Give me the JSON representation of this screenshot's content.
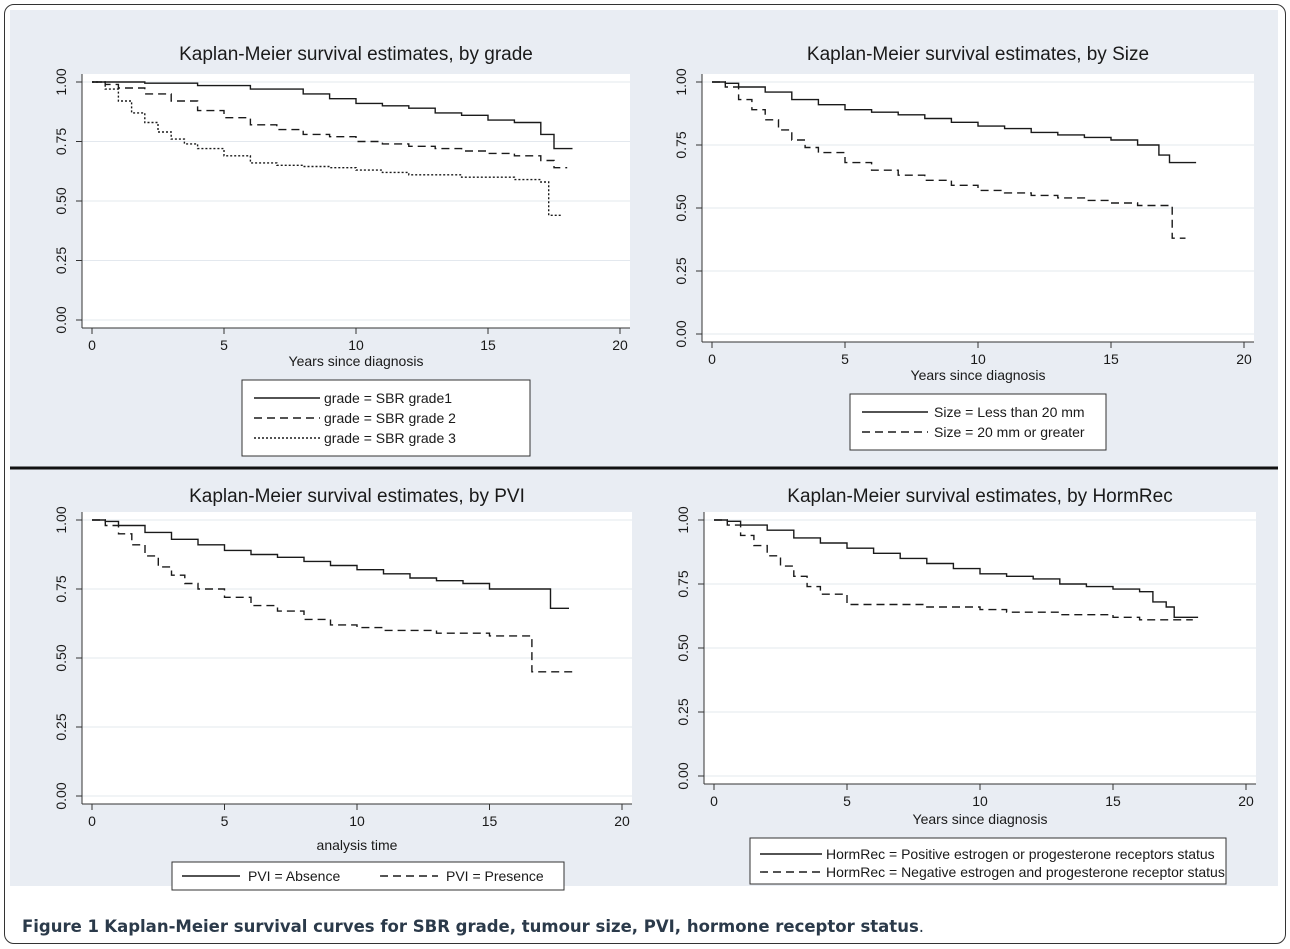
{
  "caption": {
    "label": "Figure 1",
    "text": "Kaplan-Meier survival curves for SBR grade, tumour size, PVI, hormone receptor status",
    "end": "."
  },
  "colors": {
    "panel_bg": "#e9edf3",
    "plot_bg": "#ffffff",
    "grid": "#e3e8ee",
    "line": "#1a1a1a"
  },
  "chart_data": [
    {
      "type": "line",
      "title": "Kaplan-Meier survival estimates, by grade",
      "xlabel": "Years since diagnosis",
      "ylabel": "",
      "xlim": [
        0,
        20
      ],
      "ylim": [
        0,
        1
      ],
      "xticks": [
        "0",
        "5",
        "10",
        "15",
        "20"
      ],
      "yticks": [
        "0.00",
        "0.25",
        "0.50",
        "0.75",
        "1.00"
      ],
      "grid": true,
      "legend_position": "bottom",
      "series": [
        {
          "name": "grade = SBR grade1",
          "style": "solid",
          "x": [
            0,
            2,
            4,
            6,
            8,
            9,
            10,
            11,
            12,
            13,
            14,
            15,
            16,
            16.5,
            17,
            17.5,
            18.2
          ],
          "y": [
            1.0,
            0.995,
            0.985,
            0.97,
            0.95,
            0.93,
            0.91,
            0.9,
            0.89,
            0.87,
            0.86,
            0.84,
            0.83,
            0.83,
            0.78,
            0.72,
            0.72
          ]
        },
        {
          "name": "grade = SBR grade 2",
          "style": "dashed",
          "x": [
            0,
            0.5,
            1,
            2,
            3,
            4,
            5,
            6,
            7,
            8,
            9,
            10,
            11,
            12,
            13,
            14,
            15,
            16,
            17,
            17.5,
            18
          ],
          "y": [
            1.0,
            0.99,
            0.975,
            0.95,
            0.92,
            0.88,
            0.85,
            0.82,
            0.8,
            0.78,
            0.77,
            0.75,
            0.74,
            0.73,
            0.72,
            0.71,
            0.7,
            0.69,
            0.67,
            0.64,
            0.64
          ]
        },
        {
          "name": "grade = SBR grade 3",
          "style": "dotted",
          "x": [
            0,
            0.5,
            1,
            1.5,
            2,
            2.5,
            3,
            3.5,
            4,
            5,
            6,
            7,
            8,
            9,
            10,
            11,
            12,
            13,
            14,
            15,
            16,
            17,
            17.3,
            17.8
          ],
          "y": [
            1.0,
            0.97,
            0.92,
            0.87,
            0.83,
            0.79,
            0.76,
            0.74,
            0.72,
            0.69,
            0.66,
            0.65,
            0.645,
            0.64,
            0.63,
            0.62,
            0.61,
            0.61,
            0.6,
            0.6,
            0.59,
            0.58,
            0.44,
            0.44
          ]
        }
      ]
    },
    {
      "type": "line",
      "title": "Kaplan-Meier survival estimates, by Size",
      "xlabel": "Years since diagnosis",
      "ylabel": "",
      "xlim": [
        0,
        20
      ],
      "ylim": [
        0,
        1
      ],
      "xticks": [
        "0",
        "5",
        "10",
        "15",
        "20"
      ],
      "yticks": [
        "0.00",
        "0.25",
        "0.50",
        "0.75",
        "1.00"
      ],
      "grid": true,
      "legend_position": "bottom",
      "series": [
        {
          "name": "Size = Less than 20 mm",
          "style": "solid",
          "x": [
            0,
            0.5,
            1,
            2,
            3,
            4,
            5,
            6,
            7,
            8,
            9,
            10,
            11,
            12,
            13,
            14,
            15,
            16,
            16.8,
            17.2,
            18.2
          ],
          "y": [
            1.0,
            0.995,
            0.98,
            0.96,
            0.93,
            0.91,
            0.89,
            0.88,
            0.87,
            0.855,
            0.84,
            0.825,
            0.815,
            0.8,
            0.79,
            0.78,
            0.77,
            0.75,
            0.71,
            0.68,
            0.68
          ]
        },
        {
          "name": "Size = 20 mm or greater",
          "style": "dashed",
          "x": [
            0,
            0.5,
            1,
            1.5,
            2,
            2.5,
            3,
            3.5,
            4,
            5,
            6,
            7,
            8,
            9,
            10,
            11,
            12,
            13,
            14,
            15,
            16,
            17,
            17.3,
            17.8
          ],
          "y": [
            1.0,
            0.98,
            0.93,
            0.89,
            0.85,
            0.81,
            0.77,
            0.74,
            0.72,
            0.68,
            0.65,
            0.63,
            0.61,
            0.59,
            0.57,
            0.56,
            0.55,
            0.54,
            0.53,
            0.52,
            0.51,
            0.51,
            0.38,
            0.38
          ]
        }
      ]
    },
    {
      "type": "line",
      "title": "Kaplan-Meier survival estimates, by PVI",
      "xlabel": "analysis time",
      "ylabel": "",
      "xlim": [
        0,
        20
      ],
      "ylim": [
        0,
        1
      ],
      "xticks": [
        "0",
        "5",
        "10",
        "15",
        "20"
      ],
      "yticks": [
        "0.00",
        "0.25",
        "0.50",
        "0.75",
        "1.00"
      ],
      "grid": true,
      "legend_position": "bottom",
      "series": [
        {
          "name": "PVI = Absence",
          "style": "solid",
          "x": [
            0,
            0.5,
            1,
            2,
            3,
            4,
            5,
            6,
            7,
            8,
            9,
            10,
            11,
            12,
            13,
            14,
            15,
            16,
            17,
            17.3,
            18
          ],
          "y": [
            1.0,
            0.995,
            0.98,
            0.955,
            0.93,
            0.91,
            0.89,
            0.875,
            0.865,
            0.85,
            0.835,
            0.82,
            0.805,
            0.79,
            0.78,
            0.77,
            0.75,
            0.75,
            0.75,
            0.68,
            0.68
          ]
        },
        {
          "name": "PVI = Presence",
          "style": "dashed",
          "x": [
            0,
            0.5,
            1,
            1.5,
            2,
            2.5,
            3,
            3.5,
            4,
            5,
            6,
            7,
            8,
            9,
            10,
            11,
            12,
            13,
            14,
            15,
            16,
            16.6,
            17,
            18.2
          ],
          "y": [
            1.0,
            0.98,
            0.95,
            0.91,
            0.87,
            0.83,
            0.8,
            0.77,
            0.75,
            0.72,
            0.69,
            0.67,
            0.64,
            0.62,
            0.61,
            0.6,
            0.6,
            0.59,
            0.59,
            0.58,
            0.58,
            0.45,
            0.45,
            0.45
          ]
        }
      ]
    },
    {
      "type": "line",
      "title": "Kaplan-Meier survival estimates, by HormRec",
      "xlabel": "Years since diagnosis",
      "ylabel": "",
      "xlim": [
        0,
        20
      ],
      "ylim": [
        0,
        1
      ],
      "xticks": [
        "0",
        "5",
        "10",
        "15",
        "20"
      ],
      "yticks": [
        "0.00",
        "0.25",
        "0.50",
        "0.75",
        "1.00"
      ],
      "grid": true,
      "legend_position": "bottom",
      "series": [
        {
          "name": "HormRec = Positive estrogen or progesterone receptors status",
          "style": "solid",
          "x": [
            0,
            0.5,
            1,
            2,
            3,
            4,
            5,
            6,
            7,
            8,
            9,
            10,
            11,
            12,
            13,
            14,
            15,
            16,
            16.5,
            17,
            17.3,
            18.2
          ],
          "y": [
            1.0,
            0.995,
            0.98,
            0.96,
            0.93,
            0.91,
            0.89,
            0.87,
            0.85,
            0.83,
            0.81,
            0.79,
            0.78,
            0.77,
            0.75,
            0.74,
            0.73,
            0.72,
            0.68,
            0.66,
            0.62,
            0.62
          ]
        },
        {
          "name": "HormRec = Negative estrogen and progesterone receptor status",
          "style": "dashed",
          "x": [
            0,
            0.5,
            1,
            1.5,
            2,
            2.5,
            3,
            3.5,
            4,
            5,
            6,
            7,
            8,
            9,
            10,
            11,
            12,
            13,
            14,
            15,
            16,
            17,
            18
          ],
          "y": [
            1.0,
            0.98,
            0.94,
            0.9,
            0.86,
            0.82,
            0.78,
            0.74,
            0.71,
            0.67,
            0.67,
            0.67,
            0.66,
            0.66,
            0.65,
            0.64,
            0.64,
            0.63,
            0.63,
            0.62,
            0.61,
            0.61,
            0.61
          ]
        }
      ]
    }
  ]
}
